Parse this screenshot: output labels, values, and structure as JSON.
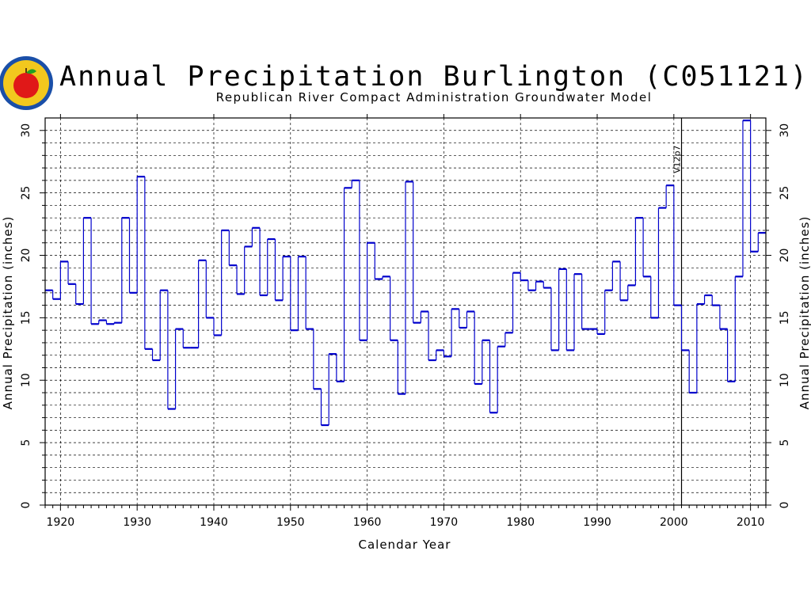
{
  "chart_data": {
    "type": "line",
    "style": "step",
    "title": "Annual Precipitation Burlington (C051121)",
    "subtitle": "Republican River Compact Administration Groundwater Model",
    "xlabel": "Calendar Year",
    "ylabel": "Annual Precipitation (inches)",
    "ylabel_right": "Annual Precipitation (inches)",
    "xlim": [
      1918,
      2012
    ],
    "ylim": [
      0,
      31
    ],
    "x_ticks": [
      1920,
      1930,
      1940,
      1950,
      1960,
      1970,
      1980,
      1990,
      2000,
      2010
    ],
    "y_ticks": [
      0,
      5,
      10,
      15,
      20,
      25,
      30
    ],
    "grid": true,
    "annotation": {
      "x": 2001,
      "label": "V12p7"
    },
    "colors": {
      "series": "#0000cc",
      "grid": "#000000",
      "axis": "#000000"
    },
    "logo": {
      "icon": "apple-seal-icon",
      "colors": [
        "#1040a0",
        "#f0c020",
        "#e01010",
        "#20a020"
      ]
    },
    "series": [
      {
        "x": [
          1918,
          1919,
          1920,
          1921,
          1922,
          1923,
          1924,
          1925,
          1926,
          1927,
          1928,
          1929,
          1930,
          1931,
          1932,
          1933,
          1934,
          1935,
          1936,
          1937,
          1938,
          1939,
          1940,
          1941,
          1942,
          1943,
          1944,
          1945,
          1946,
          1947,
          1948,
          1949,
          1950,
          1951,
          1952,
          1953,
          1954,
          1955,
          1956,
          1957,
          1958,
          1959,
          1960,
          1961,
          1962,
          1963,
          1964,
          1965,
          1966,
          1967,
          1968,
          1969,
          1970,
          1971,
          1972,
          1973,
          1974,
          1975,
          1976,
          1977,
          1978,
          1979,
          1980,
          1981,
          1982,
          1983,
          1984,
          1985,
          1986,
          1987,
          1988,
          1989,
          1990,
          1991,
          1992,
          1993,
          1994,
          1995,
          1996,
          1997,
          1998,
          1999,
          2000,
          2001,
          2002,
          2003,
          2004,
          2005,
          2006,
          2007,
          2008,
          2009,
          2010,
          2011
        ],
        "y": [
          17.2,
          16.5,
          19.5,
          17.7,
          16.1,
          23.0,
          14.5,
          14.8,
          14.5,
          14.6,
          23.0,
          17.0,
          26.3,
          12.5,
          11.6,
          17.2,
          7.7,
          14.1,
          12.6,
          12.6,
          19.6,
          15.0,
          13.6,
          22.0,
          19.2,
          16.9,
          20.7,
          22.2,
          16.8,
          21.3,
          16.4,
          19.9,
          14.0,
          19.9,
          14.1,
          9.3,
          6.4,
          12.1,
          9.9,
          25.4,
          26.0,
          13.2,
          21.0,
          18.1,
          18.3,
          13.2,
          8.9,
          25.9,
          14.6,
          15.5,
          11.6,
          12.4,
          11.9,
          15.7,
          14.2,
          15.5,
          9.7,
          13.2,
          7.4,
          12.7,
          13.8,
          18.6,
          18.0,
          17.2,
          17.9,
          17.4,
          12.4,
          18.9,
          12.4,
          18.5,
          14.1,
          14.1,
          13.7,
          17.2,
          19.5,
          16.4,
          17.6,
          23.0,
          18.3,
          15.0,
          23.8,
          25.6,
          16.0,
          12.4,
          9.0,
          16.1,
          16.8,
          16.0,
          14.1,
          9.9,
          18.3,
          30.8,
          20.3,
          21.8
        ]
      }
    ]
  }
}
